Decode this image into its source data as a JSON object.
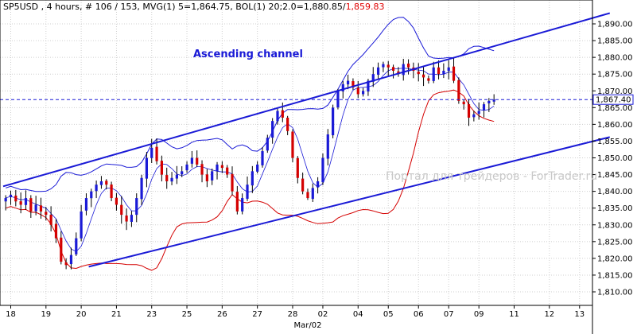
{
  "header": {
    "symbol": "SP5USD",
    "info": " , 4 hours, # 106 / 153, MVG(1) 5=1,864.75, BOL(1) 20;2.0=1,880.85/",
    "bol_lower": "1,859.83",
    "bol_lower_color": "#e00000"
  },
  "annotation": "Ascending channel",
  "watermark": "Портал для трейдеров - ForTrader.ru",
  "current_price": "1,867.40",
  "colors": {
    "up_candle": "#1a1ad6",
    "down_candle": "#d40000",
    "channel": "#1a1ad6",
    "bollinger_outer": "#1a1ad6",
    "bollinger_mid": "#d40000",
    "price_line": "#1a1ad6"
  },
  "chart_data": {
    "type": "candlestick",
    "ylim": [
      1805,
      1895
    ],
    "y_ticks": [
      "1,810.00",
      "1,815.00",
      "1,820.00",
      "1,825.00",
      "1,830.00",
      "1,835.00",
      "1,840.00",
      "1,845.00",
      "1,850.00",
      "1,855.00",
      "1,860.00",
      "1,865.00",
      "1,870.00",
      "1,875.00",
      "1,880.00",
      "1,885.00",
      "1,890.00"
    ],
    "y_tick_values": [
      1810,
      1815,
      1820,
      1825,
      1830,
      1835,
      1840,
      1845,
      1850,
      1855,
      1860,
      1865,
      1870,
      1875,
      1880,
      1885,
      1890
    ],
    "x_ticks": [
      "18",
      "19",
      "20",
      "21",
      "23",
      "25",
      "26",
      "27",
      "28",
      "02",
      "04",
      "05",
      "06",
      "07",
      "09",
      "11",
      "12",
      "13"
    ],
    "x_tick_bars": [
      1,
      8,
      15,
      22,
      29,
      36,
      43,
      50,
      57,
      63,
      70,
      76,
      82,
      88,
      94,
      101,
      108,
      114
    ],
    "x_sublabel": "Mar/02",
    "x_sublabel_bar": 60,
    "grid": true,
    "current_price": 1867.4,
    "series_names": [
      "price",
      "MVG(1) 5",
      "BOL(1) 20;2.0 upper",
      "BOL(1) 20;2.0 middle",
      "BOL(1) 20;2.0 lower"
    ],
    "candles_close": [
      1838,
      1839,
      1837,
      1836,
      1838,
      1834,
      1836,
      1834,
      1833,
      1830,
      1826,
      1819,
      1818,
      1821,
      1826,
      1834,
      1838,
      1840,
      1842,
      1843,
      1842,
      1838,
      1836,
      1833,
      1831,
      1833,
      1838,
      1844,
      1850,
      1853,
      1849,
      1845,
      1843,
      1844,
      1845,
      1846,
      1848,
      1850,
      1848,
      1845,
      1843,
      1846,
      1848,
      1847,
      1845,
      1840,
      1834,
      1838,
      1842,
      1846,
      1848,
      1852,
      1856,
      1861,
      1864,
      1862,
      1858,
      1850,
      1844,
      1840,
      1838,
      1841,
      1843,
      1850,
      1857,
      1865,
      1870,
      1872,
      1873,
      1871,
      1869,
      1870,
      1873,
      1875,
      1877,
      1878,
      1877,
      1876,
      1875,
      1878,
      1877,
      1876,
      1875,
      1874,
      1873,
      1877,
      1875,
      1876,
      1877,
      1873,
      1867,
      1866,
      1862,
      1863,
      1864,
      1866,
      1867,
      1867.4
    ],
    "channel_upper": [
      [
        0,
        1841.5
      ],
      [
        120,
        1893.2
      ]
    ],
    "channel_lower": [
      [
        16.5,
        1817.5
      ],
      [
        120,
        1856.2
      ]
    ]
  }
}
